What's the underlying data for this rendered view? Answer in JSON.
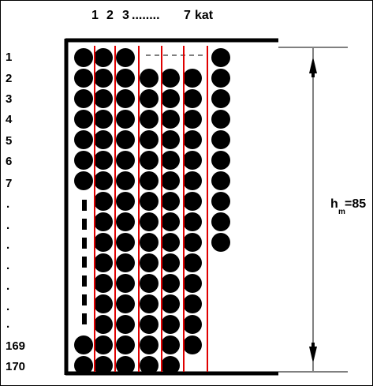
{
  "column_header": {
    "col1": "1",
    "col2": "2",
    "col3": "3",
    "dots": "........",
    "col_last": "7",
    "unit": "kat"
  },
  "row_labels": [
    "1",
    "2",
    "3",
    "4",
    "5",
    "6",
    "7",
    ".",
    ".",
    ".",
    ".",
    ".",
    ".",
    ".",
    "169",
    "170"
  ],
  "height_label": {
    "symbol": "h",
    "subscript": "m",
    "value": "=85"
  },
  "colors": {
    "line": "#000000",
    "separator": "#e00000",
    "ball": "#000000"
  }
}
